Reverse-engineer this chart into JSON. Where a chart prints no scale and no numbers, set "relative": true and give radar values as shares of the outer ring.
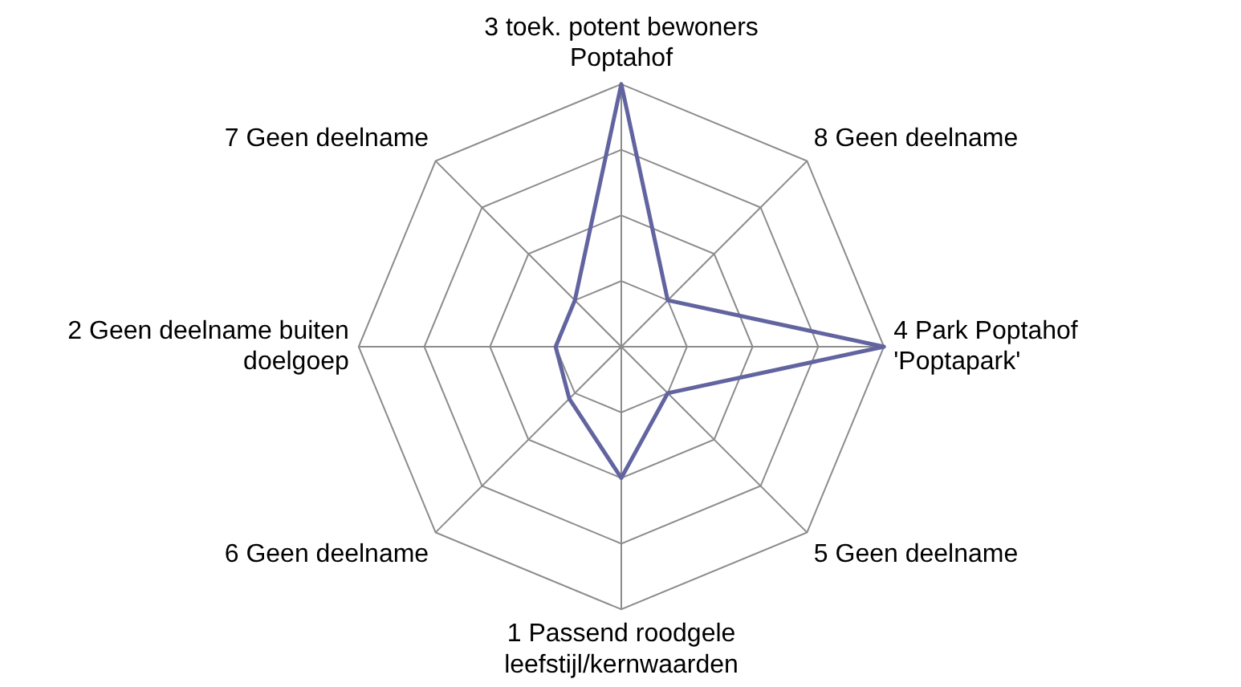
{
  "chart_data": {
    "type": "radar",
    "relative": true,
    "categories": [
      "3 toek. potent bewoners Poptahof",
      "8 Geen deelname",
      "4 Park Poptahof 'Poptapark'",
      "5 Geen deelname",
      "1 Passend roodgele leefstijl/kernwaarden",
      "6 Geen deelname",
      "2 Geen deelname buiten doelgoep",
      "7 Geen deelname"
    ],
    "series": [
      {
        "color": "#6264a0",
        "values": [
          1,
          0.25,
          1,
          0.25,
          0.5,
          0.28,
          0.25,
          0.25
        ]
      }
    ],
    "grid": true,
    "legend": false,
    "marker": "none"
  }
}
